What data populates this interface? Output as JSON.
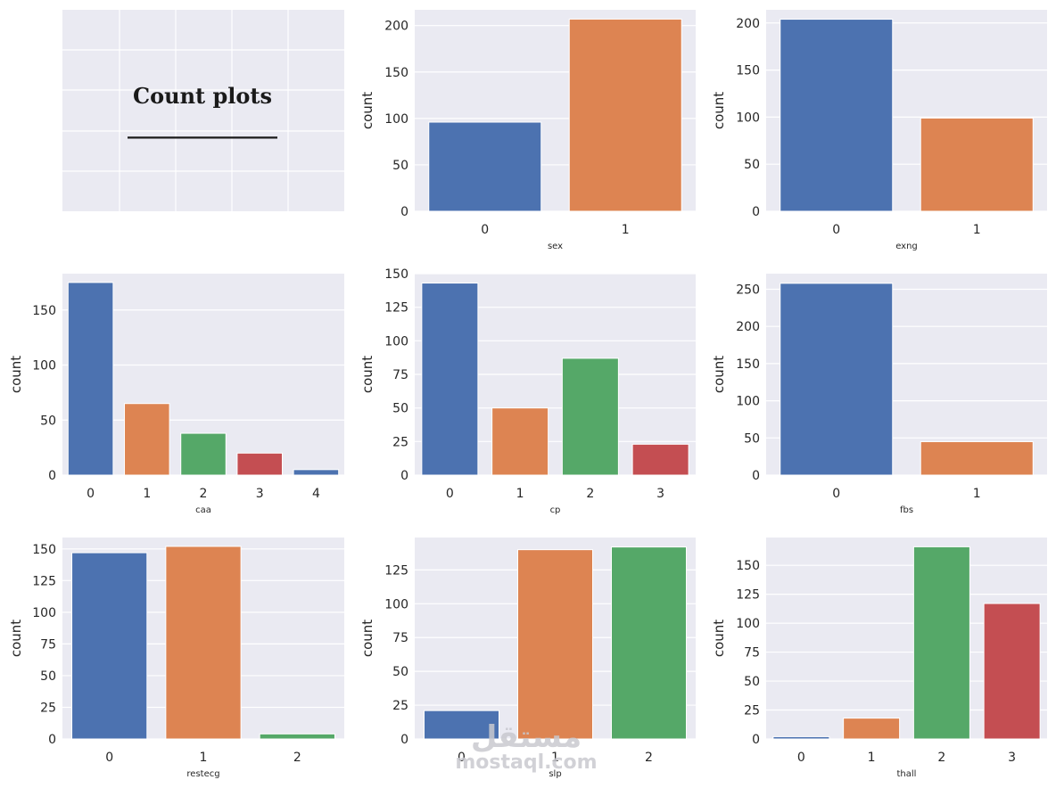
{
  "figure": {
    "title_panel": {
      "title": "Count plots",
      "underline": "______________"
    },
    "watermark": {
      "arabic": "مستقل",
      "latin": "mostaql.com"
    },
    "colors": {
      "background": "#eaeaf2",
      "grid": "#ffffff",
      "text": "#262626",
      "palette": [
        "#4c72b0",
        "#dd8452",
        "#55a868",
        "#c44e52"
      ]
    }
  },
  "chart_data": [
    {
      "type": "bar",
      "xlabel": "sex",
      "ylabel": "count",
      "categories": [
        "0",
        "1"
      ],
      "values": [
        96,
        207
      ],
      "ylim": [
        0,
        217
      ],
      "yticks": [
        0,
        50,
        100,
        150,
        200
      ]
    },
    {
      "type": "bar",
      "xlabel": "exng",
      "ylabel": "count",
      "categories": [
        "0",
        "1"
      ],
      "values": [
        204,
        99
      ],
      "ylim": [
        0,
        214
      ],
      "yticks": [
        0,
        50,
        100,
        150,
        200
      ]
    },
    {
      "type": "bar",
      "xlabel": "caa",
      "ylabel": "count",
      "categories": [
        "0",
        "1",
        "2",
        "3",
        "4"
      ],
      "values": [
        175,
        65,
        38,
        20,
        5
      ],
      "ylim": [
        0,
        183
      ],
      "yticks": [
        0,
        50,
        100,
        150
      ]
    },
    {
      "type": "bar",
      "xlabel": "cp",
      "ylabel": "count",
      "categories": [
        "0",
        "1",
        "2",
        "3"
      ],
      "values": [
        143,
        50,
        87,
        23
      ],
      "ylim": [
        0,
        150
      ],
      "yticks": [
        0,
        25,
        50,
        75,
        100,
        125,
        150
      ]
    },
    {
      "type": "bar",
      "xlabel": "fbs",
      "ylabel": "count",
      "categories": [
        "0",
        "1"
      ],
      "values": [
        258,
        45
      ],
      "ylim": [
        0,
        271
      ],
      "yticks": [
        0,
        50,
        100,
        150,
        200,
        250
      ]
    },
    {
      "type": "bar",
      "xlabel": "restecg",
      "ylabel": "count",
      "categories": [
        "0",
        "1",
        "2"
      ],
      "values": [
        147,
        152,
        4
      ],
      "ylim": [
        0,
        159
      ],
      "yticks": [
        0,
        25,
        50,
        75,
        100,
        125,
        150
      ]
    },
    {
      "type": "bar",
      "xlabel": "slp",
      "ylabel": "count",
      "categories": [
        "0",
        "1",
        "2"
      ],
      "values": [
        21,
        140,
        142
      ],
      "ylim": [
        0,
        149
      ],
      "yticks": [
        0,
        25,
        50,
        75,
        100,
        125
      ]
    },
    {
      "type": "bar",
      "xlabel": "thall",
      "ylabel": "count",
      "categories": [
        "0",
        "1",
        "2",
        "3"
      ],
      "values": [
        2,
        18,
        166,
        117
      ],
      "ylim": [
        0,
        174
      ],
      "yticks": [
        0,
        25,
        50,
        75,
        100,
        125,
        150
      ]
    }
  ]
}
